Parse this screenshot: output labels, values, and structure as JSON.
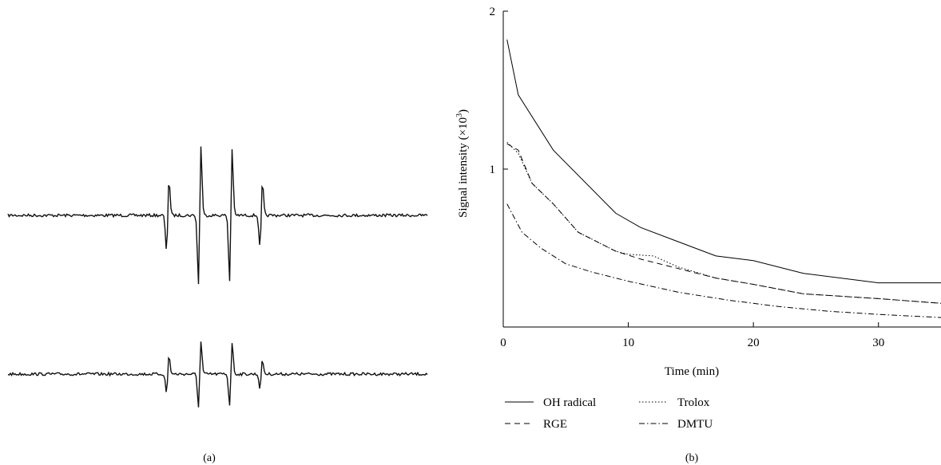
{
  "panels": {
    "a_label": "(a)",
    "b_label": "(b)"
  },
  "chart_data": [
    {
      "type": "line",
      "panel": "(a)",
      "description_of_content": "ESR spectra",
      "series": [
        {
          "name": "",
          "peaks": [
            0.53,
            1.0,
            0.96,
            0.47
          ]
        },
        {
          "name": "",
          "peaks": [
            0.27,
            0.47,
            0.46,
            0.2
          ]
        }
      ]
    },
    {
      "type": "line",
      "panel": "(b)",
      "title": "",
      "xlabel": "Time (min)",
      "ylabel_prefix": "Signal intensity (",
      "ylabel_times": "×10",
      "ylabel_exp": "3",
      "ylabel_suffix": ")",
      "xlim": [
        0,
        35
      ],
      "ylim": [
        0,
        2
      ],
      "x_ticks": [
        0,
        10,
        20,
        30
      ],
      "y_ticks": [
        1,
        2
      ],
      "grid": false,
      "legend_position": "bottom",
      "series": [
        {
          "name": "OH radical",
          "style": "solid",
          "x": [
            0.3,
            1.2,
            4,
            9,
            11,
            14,
            17,
            20,
            24,
            30,
            35
          ],
          "y": [
            1.82,
            1.47,
            1.12,
            0.72,
            0.63,
            0.54,
            0.45,
            0.42,
            0.34,
            0.28,
            0.28
          ]
        },
        {
          "name": "RGE",
          "style": "dashed",
          "x": [
            0.3,
            1.2,
            2.3,
            4,
            6,
            9,
            11,
            14,
            17,
            20,
            24,
            30,
            35
          ],
          "y": [
            1.16,
            1.12,
            0.91,
            0.78,
            0.6,
            0.48,
            0.43,
            0.37,
            0.31,
            0.27,
            0.21,
            0.18,
            0.15
          ]
        },
        {
          "name": "Trolox",
          "style": "dotted",
          "x": [
            0.3,
            1.2,
            2.3,
            4,
            6,
            9,
            10,
            12,
            14,
            17,
            20,
            24,
            30,
            35
          ],
          "y": [
            1.17,
            1.1,
            0.91,
            0.78,
            0.6,
            0.48,
            0.46,
            0.45,
            0.38,
            0.31,
            0.27,
            0.21,
            0.18,
            0.15
          ]
        },
        {
          "name": "DMTU",
          "style": "dashdot",
          "x": [
            0.3,
            1.5,
            3,
            5,
            7,
            10,
            14,
            18,
            22,
            26,
            30,
            35
          ],
          "y": [
            0.78,
            0.6,
            0.5,
            0.4,
            0.35,
            0.29,
            0.22,
            0.17,
            0.13,
            0.1,
            0.08,
            0.06
          ]
        }
      ]
    }
  ]
}
